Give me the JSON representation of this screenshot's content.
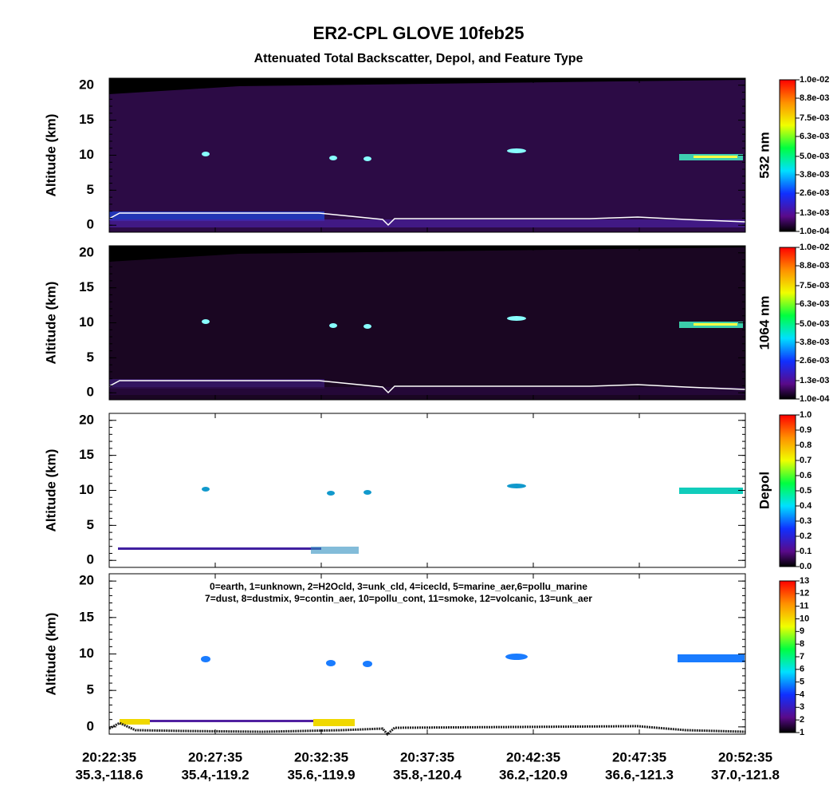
{
  "chart_data": {
    "type": "curtain",
    "title": "ER2-CPL GLOVE 10feb25",
    "subtitle": "Attenuated Total Backscatter, Depol, and Feature Type",
    "xticks": [
      {
        "time": "20:22:35",
        "location": "35.3,-118.6"
      },
      {
        "time": "20:27:35",
        "location": "35.4,-119.2"
      },
      {
        "time": "20:32:35",
        "location": "35.6,-119.9"
      },
      {
        "time": "20:37:35",
        "location": "35.8,-120.4"
      },
      {
        "time": "20:42:35",
        "location": "36.2,-120.9"
      },
      {
        "time": "20:47:35",
        "location": "36.6,-121.3"
      },
      {
        "time": "20:52:35",
        "location": "37.0,-121.8"
      }
    ],
    "panels": [
      {
        "ylabel": "Altitude (km)",
        "ylim": [
          -1,
          21
        ],
        "yticks": [
          0,
          5,
          10,
          15,
          20
        ],
        "colorbar": {
          "title": "532 nm",
          "lim": [
            0.0001,
            0.01
          ],
          "ticks": [
            {
              "value": 0.0001,
              "label": "1.0e-04"
            },
            {
              "value": 0.0013,
              "label": "1.3e-03"
            },
            {
              "value": 0.0026,
              "label": "2.6e-03"
            },
            {
              "value": 0.0038,
              "label": "3.8e-03"
            },
            {
              "value": 0.005,
              "label": "5.0e-03"
            },
            {
              "value": 0.0063,
              "label": "6.3e-03"
            },
            {
              "value": 0.0075,
              "label": "7.5e-03"
            },
            {
              "value": 0.0088,
              "label": "8.8e-03"
            },
            {
              "value": 0.01,
              "label": "1.0e-02"
            }
          ]
        }
      },
      {
        "ylabel": "Altitude (km)",
        "ylim": [
          -1,
          21
        ],
        "yticks": [
          0,
          5,
          10,
          15,
          20
        ],
        "colorbar": {
          "title": "1064 nm",
          "lim": [
            0.0001,
            0.01
          ],
          "ticks": [
            {
              "value": 0.0001,
              "label": "1.0e-04"
            },
            {
              "value": 0.0013,
              "label": "1.3e-03"
            },
            {
              "value": 0.0026,
              "label": "2.6e-03"
            },
            {
              "value": 0.0038,
              "label": "3.8e-03"
            },
            {
              "value": 0.005,
              "label": "5.0e-03"
            },
            {
              "value": 0.0063,
              "label": "6.3e-03"
            },
            {
              "value": 0.0075,
              "label": "7.5e-03"
            },
            {
              "value": 0.0088,
              "label": "8.8e-03"
            },
            {
              "value": 0.01,
              "label": "1.0e-02"
            }
          ]
        }
      },
      {
        "ylabel": "Altitude (km)",
        "ylim": [
          -1,
          21
        ],
        "yticks": [
          0,
          5,
          10,
          15,
          20
        ],
        "colorbar": {
          "title": "Depol",
          "lim": [
            0,
            1
          ],
          "ticks": [
            {
              "value": 0,
              "label": "0.0"
            },
            0.1,
            0.2,
            0.3,
            0.4,
            0.5,
            0.6,
            0.7,
            0.8,
            0.9,
            {
              "value": 1,
              "label": "1.0"
            }
          ]
        }
      },
      {
        "ylabel": "Altitude (km)",
        "ylim": [
          -1,
          21
        ],
        "yticks": [
          0,
          5,
          10,
          15,
          20
        ],
        "annotations": [
          "0=earth, 1=unknown, 2=H2Ocld, 3=unk_cld, 4=icecld, 5=marine_aer,6=pollu_marine",
          "7=dust, 8=dustmix, 9=contin_aer, 10=pollu_cont, 11=smoke, 12=volcanic, 13=unk_aer"
        ],
        "colorbar": {
          "lim": [
            1,
            13
          ],
          "ticks": [
            1,
            2,
            3,
            4,
            5,
            6,
            7,
            8,
            9,
            10,
            11,
            12,
            13
          ]
        }
      }
    ]
  }
}
